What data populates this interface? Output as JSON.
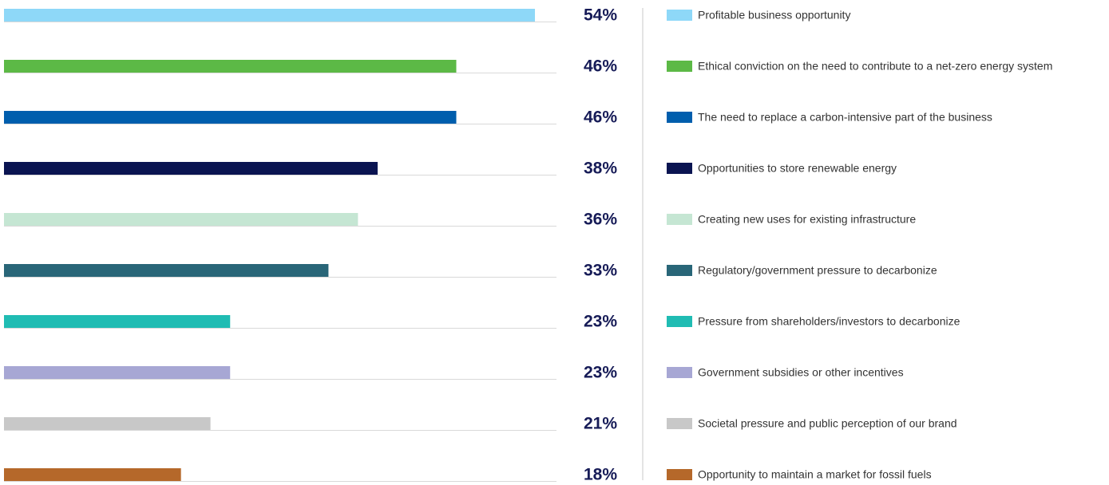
{
  "chart_data": {
    "type": "bar",
    "orientation": "horizontal",
    "categories": [
      "Profitable business opportunity",
      "Ethical conviction on the need to contribute to a net-zero energy system",
      "The need to replace a carbon-intensive part of the business",
      "Opportunities to store renewable energy",
      "Creating new uses for existing infrastructure",
      "Regulatory/government pressure to decarbonize",
      "Pressure from shareholders/investors to decarbonize",
      "Government subsidies or other incentives",
      "Societal pressure and public perception of our brand",
      "Opportunity to maintain a market for fossil fuels"
    ],
    "values": [
      54,
      46,
      46,
      38,
      36,
      33,
      23,
      23,
      21,
      18
    ],
    "value_labels": [
      "54%",
      "46%",
      "46%",
      "38%",
      "36%",
      "33%",
      "23%",
      "23%",
      "21%",
      "18%"
    ],
    "colors": [
      "#8ed8f8",
      "#5cb946",
      "#005ead",
      "#0a1451",
      "#c5e6d3",
      "#296678",
      "#20bcb3",
      "#a7a7d4",
      "#c8c8c8",
      "#b5682a"
    ]
  }
}
